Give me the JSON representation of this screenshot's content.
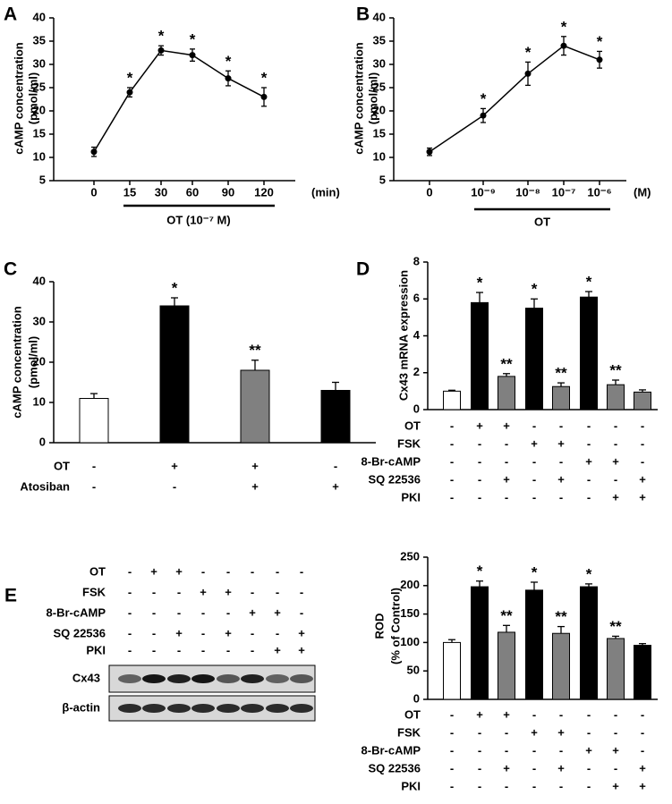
{
  "chart_data": [
    {
      "type": "line",
      "panel": "A",
      "ylabel": [
        "cAMP concentration",
        "(pmol/ml)"
      ],
      "categories": [
        "0",
        "15",
        "30",
        "60",
        "90",
        "120"
      ],
      "x_unit": "(min)",
      "group_label": "OT (10⁻⁷ M)",
      "values": [
        11.2,
        24,
        33,
        32,
        27,
        23
      ],
      "errors": [
        1,
        1,
        1,
        1.3,
        1.6,
        2
      ],
      "annotations": [
        null,
        "*",
        "*",
        "*",
        "*",
        "*"
      ],
      "ylim": [
        5,
        40
      ],
      "yticks": [
        5,
        10,
        15,
        20,
        25,
        30,
        35,
        40
      ]
    },
    {
      "type": "line",
      "panel": "B",
      "ylabel": [
        "cAMP concentration",
        "(pmol/ml)"
      ],
      "categories": [
        "0",
        "10⁻⁹",
        "10⁻⁸",
        "10⁻⁷",
        "10⁻⁶"
      ],
      "x_unit": "(M)",
      "group_label": "OT",
      "values": [
        11.2,
        19,
        28,
        34,
        31
      ],
      "errors": [
        0.8,
        1.5,
        2.5,
        2,
        1.8
      ],
      "annotations": [
        null,
        "*",
        "*",
        "*",
        "*"
      ],
      "ylim": [
        5,
        40
      ],
      "yticks": [
        5,
        10,
        15,
        20,
        25,
        30,
        35,
        40
      ]
    },
    {
      "type": "bar",
      "panel": "C",
      "ylabel": [
        "cAMP concentration",
        "(pmol/ml)"
      ],
      "values": [
        11,
        34,
        18,
        13
      ],
      "errors": [
        1.2,
        2,
        2.5,
        2
      ],
      "colors": [
        "#ffffff",
        "#000000",
        "#808080",
        "#000000"
      ],
      "annotations": [
        null,
        "*",
        "**",
        null
      ],
      "ylim": [
        0,
        40
      ],
      "yticks": [
        0,
        10,
        20,
        30,
        40
      ],
      "conditions": [
        {
          "name": "OT",
          "signs": [
            "-",
            "+",
            "+",
            "-"
          ]
        },
        {
          "name": "Atosiban",
          "signs": [
            "-",
            "-",
            "+",
            "+"
          ]
        }
      ]
    },
    {
      "type": "bar",
      "panel": "D",
      "ylabel": [
        "Cx43 mRNA expression"
      ],
      "values": [
        1,
        5.8,
        1.8,
        5.5,
        1.25,
        6.1,
        1.35,
        0.95
      ],
      "errors": [
        0.05,
        0.55,
        0.15,
        0.5,
        0.2,
        0.3,
        0.25,
        0.12
      ],
      "colors": [
        "#ffffff",
        "#000000",
        "#808080",
        "#000000",
        "#808080",
        "#000000",
        "#808080",
        "#808080"
      ],
      "annotations": [
        null,
        "*",
        "**",
        "*",
        "**",
        "*",
        "**",
        null
      ],
      "ylim": [
        0,
        8
      ],
      "yticks": [
        0,
        2,
        4,
        6,
        8
      ],
      "conditions": [
        {
          "name": "OT",
          "signs": [
            "-",
            "+",
            "+",
            "-",
            "-",
            "-",
            "-",
            "-"
          ]
        },
        {
          "name": "FSK",
          "signs": [
            "-",
            "-",
            "-",
            "+",
            "+",
            "-",
            "-",
            "-"
          ]
        },
        {
          "name": "8-Br-cAMP",
          "signs": [
            "-",
            "-",
            "-",
            "-",
            "-",
            "+",
            "+",
            "-"
          ]
        },
        {
          "name": "SQ 22536",
          "signs": [
            "-",
            "-",
            "+",
            "-",
            "+",
            "-",
            "-",
            "+"
          ]
        },
        {
          "name": "PKI",
          "signs": [
            "-",
            "-",
            "-",
            "-",
            "-",
            "-",
            "+",
            "+"
          ]
        }
      ]
    },
    {
      "type": "bar",
      "ylabel": [
        "ROD",
        "(% of Control)"
      ],
      "values": [
        100,
        198,
        118,
        192,
        116,
        198,
        107,
        95
      ],
      "errors": [
        5,
        10,
        12,
        14,
        12,
        5,
        4,
        3
      ],
      "colors": [
        "#ffffff",
        "#000000",
        "#808080",
        "#000000",
        "#808080",
        "#000000",
        "#808080",
        "#000000"
      ],
      "annotations": [
        null,
        "*",
        "**",
        "*",
        "**",
        "*",
        "**",
        null
      ],
      "ylim": [
        0,
        250
      ],
      "yticks": [
        0,
        50,
        100,
        150,
        200,
        250
      ],
      "conditions": [
        {
          "name": "OT",
          "signs": [
            "-",
            "+",
            "+",
            "-",
            "-",
            "-",
            "-",
            "-"
          ]
        },
        {
          "name": "FSK",
          "signs": [
            "-",
            "-",
            "-",
            "+",
            "+",
            "-",
            "-",
            "-"
          ]
        },
        {
          "name": "8-Br-cAMP",
          "signs": [
            "-",
            "-",
            "-",
            "-",
            "-",
            "+",
            "+",
            "-"
          ]
        },
        {
          "name": "SQ 22536",
          "signs": [
            "-",
            "-",
            "+",
            "-",
            "+",
            "-",
            "-",
            "+"
          ]
        },
        {
          "name": "PKI",
          "signs": [
            "-",
            "-",
            "-",
            "-",
            "-",
            "-",
            "+",
            "+"
          ]
        }
      ]
    }
  ],
  "blot": {
    "panel": "E",
    "conditions": [
      {
        "name": "OT",
        "signs": [
          "-",
          "+",
          "+",
          "-",
          "-",
          "-",
          "-",
          "-"
        ]
      },
      {
        "name": "FSK",
        "signs": [
          "-",
          "-",
          "-",
          "+",
          "+",
          "-",
          "-",
          "-"
        ]
      },
      {
        "name": "8-Br-cAMP",
        "signs": [
          "-",
          "-",
          "-",
          "-",
          "-",
          "+",
          "+",
          "-"
        ]
      },
      {
        "name": "SQ 22536",
        "signs": [
          "-",
          "-",
          "+",
          "-",
          "+",
          "-",
          "-",
          "+"
        ]
      },
      {
        "name": "PKI",
        "signs": [
          "-",
          "-",
          "-",
          "-",
          "-",
          "-",
          "+",
          "+"
        ]
      }
    ],
    "bands": [
      "Cx43",
      "β-actin"
    ]
  }
}
